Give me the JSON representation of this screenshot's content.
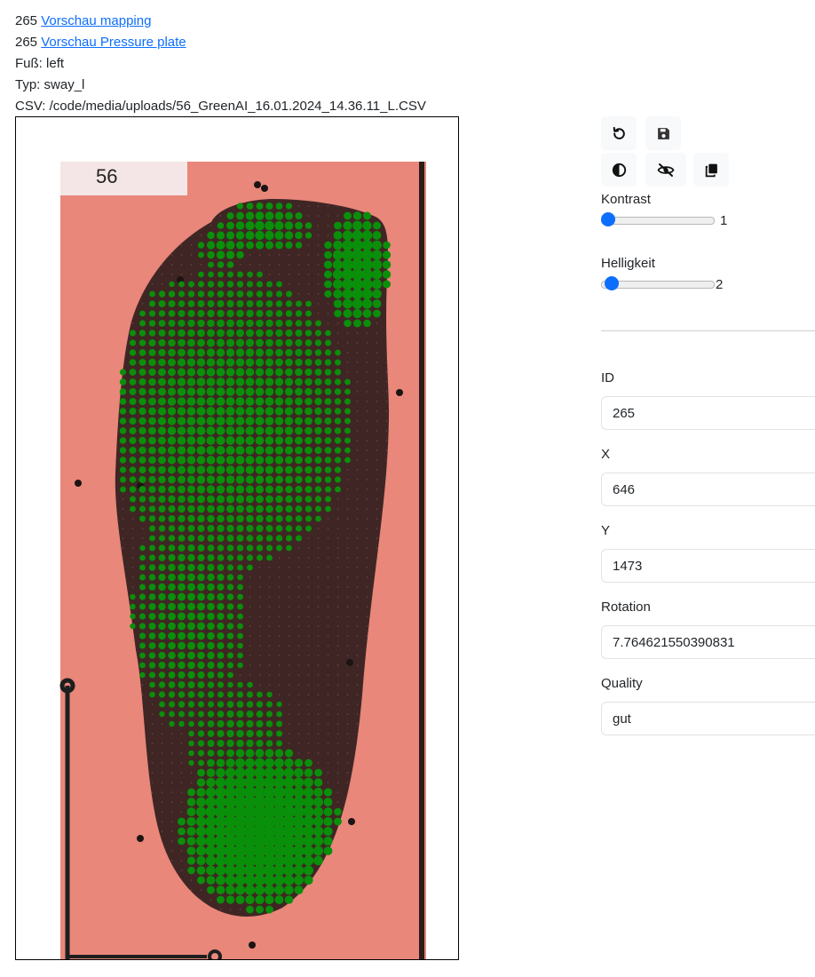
{
  "info": {
    "mapping_id": "265",
    "mapping_link": "Vorschau mapping",
    "pressure_id": "265",
    "pressure_link": "Vorschau Pressure plate",
    "foot_label": "Fuß:",
    "foot_value": "left",
    "type_label": "Typ:",
    "type_value": "sway_l",
    "csv_label": "CSV:",
    "csv_value": "/code/media/uploads/56_GreenAI_16.01.2024_14.36.11_L.CSV"
  },
  "scan": {
    "sample_number": "56",
    "colors": {
      "paper": "#e8877a",
      "foot": "#3f2624",
      "sensor": "#0a8f0a"
    }
  },
  "toolbar": {
    "buttons": [
      {
        "name": "reset-button",
        "icon": "undo-icon"
      },
      {
        "name": "save-button",
        "icon": "floppy-disk-icon"
      },
      {
        "name": "contrast-toggle-button",
        "icon": "contrast-icon"
      },
      {
        "name": "visibility-toggle-button",
        "icon": "eye-slash-icon"
      },
      {
        "name": "copy-button",
        "icon": "copy-icon"
      }
    ]
  },
  "sliders": {
    "contrast": {
      "label": "Kontrast",
      "value": "1",
      "min": 1,
      "max": 10
    },
    "brightness": {
      "label": "Helligkeit",
      "value": "2",
      "min": 1,
      "max": 20
    }
  },
  "form": {
    "id": {
      "label": "ID",
      "value": "265"
    },
    "x": {
      "label": "X",
      "value": "646"
    },
    "y": {
      "label": "Y",
      "value": "1473"
    },
    "rotation": {
      "label": "Rotation",
      "value": "7.764621550390831"
    },
    "quality": {
      "label": "Quality",
      "value": "gut"
    }
  },
  "accent_color": "#0d6efd"
}
